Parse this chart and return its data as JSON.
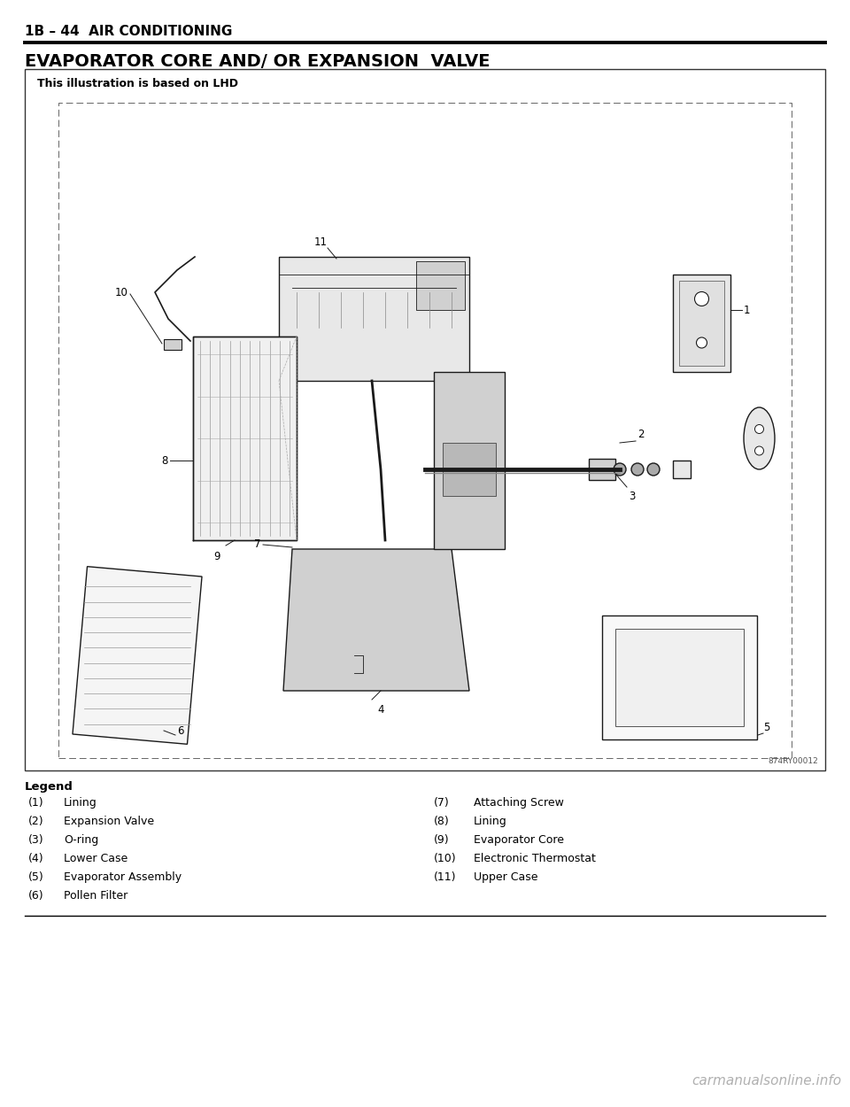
{
  "page_header": "1B – 44  AIR CONDITIONING",
  "section_title": "EVAPORATOR CORE AND/ OR EXPANSION  VALVE",
  "illustration_note": "This illustration is based on LHD",
  "image_ref": "874RY00012",
  "legend_title": "Legend",
  "legend_left": [
    [
      "(1)",
      "Lining"
    ],
    [
      "(2)",
      "Expansion Valve"
    ],
    [
      "(3)",
      "O-ring"
    ],
    [
      "(4)",
      "Lower Case"
    ],
    [
      "(5)",
      "Evaporator Assembly"
    ],
    [
      "(6)",
      "Pollen Filter"
    ]
  ],
  "legend_right": [
    [
      "(7)",
      "Attaching Screw"
    ],
    [
      "(8)",
      "Lining"
    ],
    [
      "(9)",
      "Evaporator Core"
    ],
    [
      "(10)",
      "Electronic Thermostat"
    ],
    [
      "(11)",
      "Upper Case"
    ]
  ],
  "bg_color": "#ffffff",
  "text_color": "#000000",
  "header_line_color": "#000000",
  "box_color": "#000000",
  "diagram_bg": "#ffffff",
  "watermark_text": "carmanualsonline.info",
  "watermark_color": "#b0b0b0",
  "header_fontsize": 11,
  "title_fontsize": 14,
  "legend_fontsize": 9.5,
  "note_fontsize": 9
}
